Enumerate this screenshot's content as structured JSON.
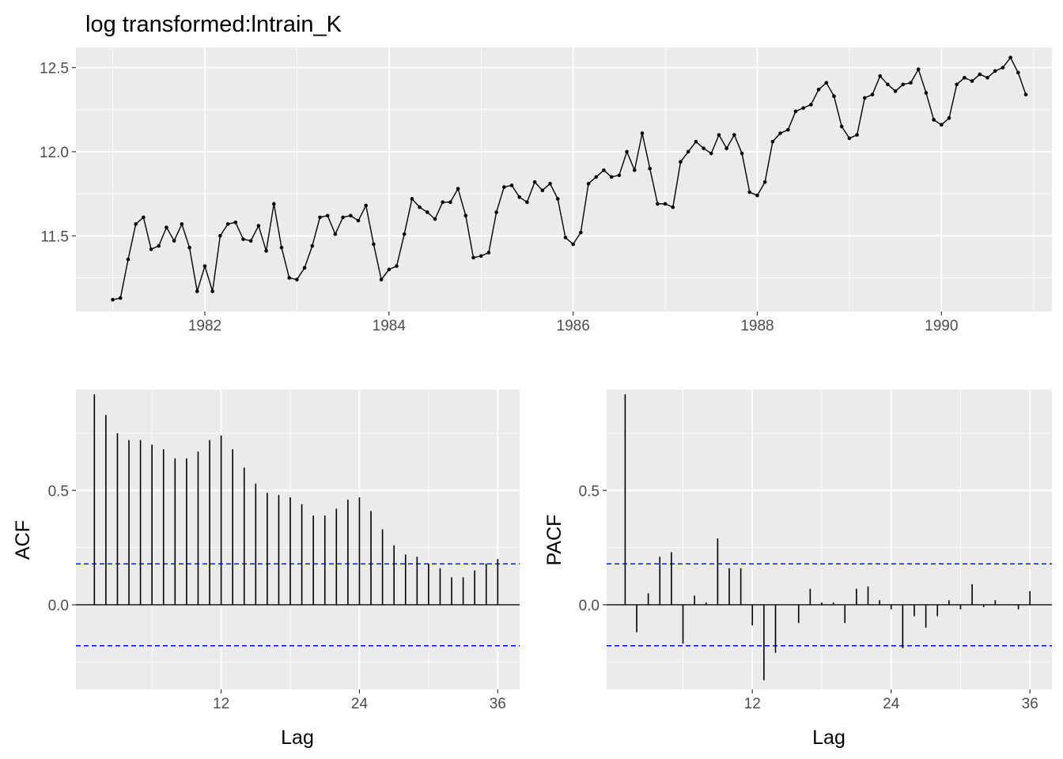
{
  "chart_data": [
    {
      "type": "line",
      "title": "log transformed:lntrain_K",
      "xlabel": "",
      "ylabel": "",
      "x_start": 1981.0,
      "x_step": 0.0833333,
      "xlim": [
        1980.6,
        1991.2
      ],
      "ylim": [
        11.05,
        12.62
      ],
      "x_ticks": [
        1982,
        1984,
        1986,
        1988,
        1990
      ],
      "x_tick_labels": [
        "1982",
        "1984",
        "1986",
        "1988",
        "1990"
      ],
      "y_ticks": [
        11.5,
        12.0,
        12.5
      ],
      "y_tick_labels": [
        "11.5",
        "12.0",
        "12.5"
      ],
      "grid": true,
      "values": [
        11.12,
        11.13,
        11.36,
        11.57,
        11.61,
        11.42,
        11.44,
        11.55,
        11.47,
        11.57,
        11.43,
        11.17,
        11.32,
        11.17,
        11.5,
        11.57,
        11.58,
        11.48,
        11.47,
        11.56,
        11.41,
        11.69,
        11.43,
        11.25,
        11.24,
        11.31,
        11.44,
        11.61,
        11.62,
        11.51,
        11.61,
        11.62,
        11.59,
        11.68,
        11.45,
        11.24,
        11.3,
        11.32,
        11.51,
        11.72,
        11.67,
        11.64,
        11.6,
        11.7,
        11.7,
        11.78,
        11.62,
        11.37,
        11.38,
        11.4,
        11.64,
        11.79,
        11.8,
        11.73,
        11.7,
        11.82,
        11.77,
        11.81,
        11.72,
        11.49,
        11.45,
        11.52,
        11.81,
        11.85,
        11.89,
        11.85,
        11.86,
        12.0,
        11.89,
        12.11,
        11.9,
        11.69,
        11.69,
        11.67,
        11.94,
        12.0,
        12.06,
        12.02,
        11.99,
        12.1,
        12.02,
        12.1,
        11.99,
        11.76,
        11.74,
        11.82,
        12.06,
        12.11,
        12.13,
        12.24,
        12.26,
        12.28,
        12.37,
        12.41,
        12.33,
        12.15,
        12.08,
        12.1,
        12.32,
        12.34,
        12.45,
        12.4,
        12.36,
        12.4,
        12.41,
        12.49,
        12.35,
        12.19,
        12.16,
        12.2,
        12.4,
        12.44,
        12.42,
        12.46,
        12.44,
        12.48,
        12.5,
        12.56,
        12.47,
        12.34
      ]
    },
    {
      "type": "bar",
      "xlabel": "Lag",
      "ylabel": "ACF",
      "xlim": [
        -0.6,
        37.9
      ],
      "ylim": [
        -0.37,
        0.94
      ],
      "x_ticks": [
        12,
        24,
        36
      ],
      "x_tick_labels": [
        "12",
        "24",
        "36"
      ],
      "y_ticks": [
        0.0,
        0.5
      ],
      "y_tick_labels": [
        "0.0",
        "0.5"
      ],
      "grid": true,
      "confidence_bound": 0.179,
      "lags": [
        1,
        2,
        3,
        4,
        5,
        6,
        7,
        8,
        9,
        10,
        11,
        12,
        13,
        14,
        15,
        16,
        17,
        18,
        19,
        20,
        21,
        22,
        23,
        24,
        25,
        26,
        27,
        28,
        29,
        30,
        31,
        32,
        33,
        34,
        35,
        36
      ],
      "values": [
        0.92,
        0.83,
        0.75,
        0.72,
        0.72,
        0.7,
        0.68,
        0.64,
        0.64,
        0.67,
        0.72,
        0.74,
        0.68,
        0.6,
        0.53,
        0.49,
        0.48,
        0.47,
        0.44,
        0.39,
        0.39,
        0.42,
        0.46,
        0.47,
        0.41,
        0.33,
        0.26,
        0.22,
        0.21,
        0.18,
        0.16,
        0.12,
        0.12,
        0.15,
        0.18,
        0.2
      ]
    },
    {
      "type": "bar",
      "xlabel": "Lag",
      "ylabel": "PACF",
      "xlim": [
        -0.6,
        37.9
      ],
      "ylim": [
        -0.37,
        0.94
      ],
      "x_ticks": [
        12,
        24,
        36
      ],
      "x_tick_labels": [
        "12",
        "24",
        "36"
      ],
      "y_ticks": [
        0.0,
        0.5
      ],
      "y_tick_labels": [
        "0.0",
        "0.5"
      ],
      "grid": true,
      "confidence_bound": 0.179,
      "lags": [
        1,
        2,
        3,
        4,
        5,
        6,
        7,
        8,
        9,
        10,
        11,
        12,
        13,
        14,
        15,
        16,
        17,
        18,
        19,
        20,
        21,
        22,
        23,
        24,
        25,
        26,
        27,
        28,
        29,
        30,
        31,
        32,
        33,
        34,
        35,
        36
      ],
      "values": [
        0.92,
        -0.12,
        0.05,
        0.21,
        0.23,
        -0.17,
        0.04,
        0.01,
        0.29,
        0.16,
        0.16,
        -0.09,
        -0.33,
        -0.21,
        0.0,
        -0.08,
        0.07,
        0.01,
        0.01,
        -0.08,
        0.07,
        0.08,
        0.02,
        -0.02,
        -0.19,
        -0.05,
        -0.1,
        -0.05,
        0.02,
        -0.02,
        0.09,
        -0.01,
        0.02,
        0.0,
        -0.02,
        0.06
      ]
    }
  ],
  "colors": {
    "panel_background": "#ebebeb",
    "grid_major": "#ffffff",
    "line": "#000000",
    "confidence_band": "#0000ff"
  }
}
